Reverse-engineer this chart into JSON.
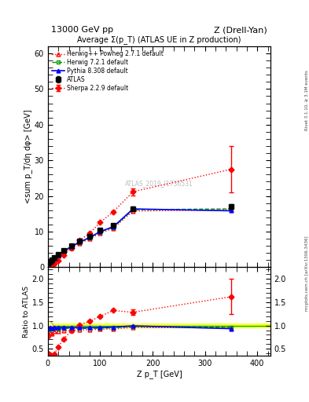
{
  "title": "Average Σ(p_T) (ATLAS UE in Z production)",
  "header_left": "13000 GeV pp",
  "header_right": "Z (Drell-Yan)",
  "ylabel_main": "<sum p_T/dη dφ> [GeV]",
  "ylabel_ratio": "Ratio to ATLAS",
  "xlabel": "Z p_T [GeV]",
  "watermark": "ATLAS_2019_I1736531",
  "right_label": "mcplots.cern.ch [arXiv:1306.3436]",
  "rivet_label": "Rivet 3.1.10, ≥ 3.1M events",
  "atlas_x": [
    0.5,
    2,
    4,
    7,
    12,
    20,
    30,
    45,
    60,
    80,
    100,
    125,
    162.5,
    350
  ],
  "atlas_y": [
    1.1,
    1.35,
    1.65,
    2.15,
    2.75,
    3.6,
    4.8,
    6.1,
    7.4,
    8.8,
    10.5,
    11.8,
    16.5,
    17.0
  ],
  "atlas_yerr": [
    0.05,
    0.05,
    0.07,
    0.08,
    0.1,
    0.12,
    0.18,
    0.22,
    0.28,
    0.32,
    0.38,
    0.45,
    0.55,
    0.65
  ],
  "herwigpp_x": [
    0.5,
    2,
    4,
    7,
    12,
    20,
    30,
    45,
    60,
    80,
    100,
    125,
    162.5,
    350
  ],
  "herwigpp_y": [
    0.85,
    1.08,
    1.38,
    1.78,
    2.38,
    3.15,
    4.25,
    5.45,
    6.7,
    8.0,
    9.65,
    10.95,
    15.8,
    16.1
  ],
  "herwig721_x": [
    0.5,
    2,
    4,
    7,
    12,
    20,
    30,
    45,
    60,
    80,
    100,
    125,
    162.5,
    350
  ],
  "herwig721_y": [
    1.0,
    1.23,
    1.53,
    1.98,
    2.58,
    3.35,
    4.5,
    5.7,
    6.95,
    8.25,
    9.9,
    11.2,
    16.15,
    16.4
  ],
  "pythia_x": [
    0.5,
    2,
    4,
    7,
    12,
    20,
    30,
    45,
    60,
    80,
    100,
    125,
    162.5,
    350
  ],
  "pythia_y": [
    1.05,
    1.28,
    1.58,
    2.03,
    2.63,
    3.45,
    4.62,
    5.82,
    7.05,
    8.38,
    10.05,
    11.4,
    16.38,
    15.85
  ],
  "sherpa_x": [
    0.5,
    2,
    4,
    7,
    12,
    20,
    30,
    45,
    60,
    80,
    100,
    125,
    162.5,
    350
  ],
  "sherpa_y": [
    0.45,
    0.52,
    0.6,
    0.72,
    1.05,
    1.95,
    3.4,
    5.45,
    7.5,
    9.6,
    12.6,
    15.6,
    21.2,
    27.5
  ],
  "sherpa_yerr": [
    0.0,
    0.0,
    0.0,
    0.0,
    0.0,
    0.0,
    0.0,
    0.0,
    0.0,
    0.0,
    0.0,
    0.0,
    1.0,
    6.5
  ],
  "ratio_herwigpp_y": [
    0.77,
    0.8,
    0.84,
    0.83,
    0.87,
    0.875,
    0.885,
    0.895,
    0.905,
    0.91,
    0.92,
    0.927,
    0.958,
    0.947
  ],
  "ratio_herwigpp_err": [
    0.0,
    0.0,
    0.0,
    0.0,
    0.0,
    0.0,
    0.0,
    0.0,
    0.0,
    0.0,
    0.0,
    0.0,
    0.0,
    0.0
  ],
  "ratio_herwig721_y": [
    0.91,
    0.91,
    0.93,
    0.92,
    0.94,
    0.93,
    0.938,
    0.938,
    0.939,
    0.938,
    0.943,
    0.95,
    0.979,
    0.965
  ],
  "ratio_pythia_y": [
    0.955,
    0.948,
    0.958,
    0.944,
    0.956,
    0.958,
    0.963,
    0.954,
    0.953,
    0.952,
    0.958,
    0.966,
    0.993,
    0.932
  ],
  "ratio_sherpa_y": [
    0.41,
    0.385,
    0.364,
    0.335,
    0.382,
    0.542,
    0.708,
    0.893,
    1.013,
    1.091,
    1.2,
    1.322,
    1.285,
    1.618
  ],
  "ratio_sherpa_err": [
    0.0,
    0.0,
    0.0,
    0.0,
    0.0,
    0.0,
    0.0,
    0.0,
    0.0,
    0.0,
    0.0,
    0.0,
    0.06,
    0.38
  ],
  "atlas_band_lo": 0.96,
  "atlas_band_hi": 1.04,
  "color_atlas": "#000000",
  "color_herwigpp": "#ff0000",
  "color_herwig721": "#009900",
  "color_pythia": "#0000ff",
  "color_sherpa": "#ff0000",
  "ylim_main": [
    0,
    62
  ],
  "ylim_ratio": [
    0.35,
    2.25
  ],
  "xlim": [
    0,
    425
  ],
  "xticks": [
    0,
    100,
    200,
    300,
    400
  ],
  "yticks_main": [
    0,
    10,
    20,
    30,
    40,
    50,
    60
  ],
  "yticks_ratio": [
    0.5,
    1.0,
    1.5,
    2.0
  ]
}
